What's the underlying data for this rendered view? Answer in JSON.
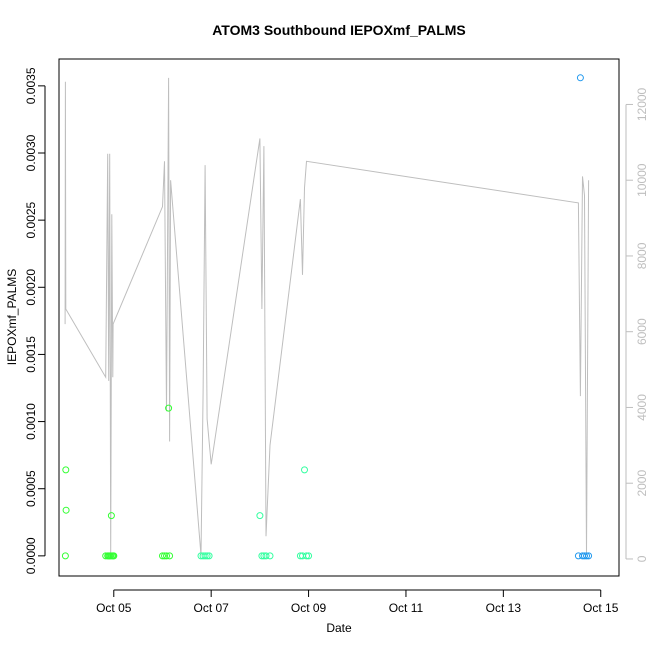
{
  "chart_data": {
    "type": "scatter",
    "title": "ATOM3 Southbound IEPOXmf_PALMS",
    "xlabel": "Date",
    "ylabel": "IEPOXmf_PALMS",
    "x_axis": {
      "kind": "date",
      "range": [
        "2017-10-03T21:00",
        "2017-10-15T09:00"
      ],
      "ticks": [
        {
          "value": "2017-10-05",
          "label": "Oct 05"
        },
        {
          "value": "2017-10-07",
          "label": "Oct 07"
        },
        {
          "value": "2017-10-09",
          "label": "Oct 09"
        },
        {
          "value": "2017-10-11",
          "label": "Oct 11"
        },
        {
          "value": "2017-10-13",
          "label": "Oct 13"
        },
        {
          "value": "2017-10-15",
          "label": "Oct 15"
        }
      ]
    },
    "y_axis": {
      "range": [
        -0.00015,
        0.0037
      ],
      "ticks": [
        {
          "value": 0.0,
          "label": "0.0000"
        },
        {
          "value": 0.0005,
          "label": "0.0005"
        },
        {
          "value": 0.001,
          "label": "0.0010"
        },
        {
          "value": 0.0015,
          "label": "0.0015"
        },
        {
          "value": 0.002,
          "label": "0.0020"
        },
        {
          "value": 0.0025,
          "label": "0.0025"
        },
        {
          "value": 0.003,
          "label": "0.0030"
        },
        {
          "value": 0.0035,
          "label": "0.0035"
        }
      ]
    },
    "y2_axis": {
      "range": [
        -450,
        13200
      ],
      "color": "#bebebe",
      "ticks": [
        {
          "value": 0,
          "label": "0"
        },
        {
          "value": 2000,
          "label": "2000"
        },
        {
          "value": 4000,
          "label": "4000"
        },
        {
          "value": 6000,
          "label": "6000"
        },
        {
          "value": 8000,
          "label": "8000"
        },
        {
          "value": 10000,
          "label": "10000"
        },
        {
          "value": 12000,
          "label": "12000"
        }
      ]
    },
    "grid": false,
    "series": [
      {
        "kind": "points",
        "marker": "open-circle",
        "color_scale": [
          "#33ff33",
          "#33ffa0",
          "#33ccee",
          "#2299ee"
        ],
        "points": [
          {
            "x": "2017-10-04T00:10",
            "y": 0.0
          },
          {
            "x": "2017-10-04T00:20",
            "y": 0.00064
          },
          {
            "x": "2017-10-04T00:30",
            "y": 0.00034
          },
          {
            "x": "2017-10-04T20:00",
            "y": 0.0
          },
          {
            "x": "2017-10-04T21:00",
            "y": 0.0
          },
          {
            "x": "2017-10-04T21:30",
            "y": 0.0
          },
          {
            "x": "2017-10-04T22:00",
            "y": 0.0
          },
          {
            "x": "2017-10-04T22:30",
            "y": 0.0
          },
          {
            "x": "2017-10-04T22:50",
            "y": 0.0003
          },
          {
            "x": "2017-10-04T23:10",
            "y": 0.0
          },
          {
            "x": "2017-10-04T23:40",
            "y": 0.0
          },
          {
            "x": "2017-10-05T00:00",
            "y": 0.0
          },
          {
            "x": "2017-10-06T00:00",
            "y": 0.0
          },
          {
            "x": "2017-10-06T01:00",
            "y": 0.0
          },
          {
            "x": "2017-10-06T02:00",
            "y": 0.0
          },
          {
            "x": "2017-10-06T03:00",
            "y": 0.0011
          },
          {
            "x": "2017-10-06T03:30",
            "y": 0.0
          },
          {
            "x": "2017-10-06T19:00",
            "y": 0.0
          },
          {
            "x": "2017-10-06T20:00",
            "y": 0.0
          },
          {
            "x": "2017-10-06T21:00",
            "y": 0.0
          },
          {
            "x": "2017-10-06T22:00",
            "y": 0.0
          },
          {
            "x": "2017-10-06T23:00",
            "y": 0.0
          },
          {
            "x": "2017-10-08T00:00",
            "y": 0.0003
          },
          {
            "x": "2017-10-08T01:00",
            "y": 0.0
          },
          {
            "x": "2017-10-08T02:00",
            "y": 0.0
          },
          {
            "x": "2017-10-08T03:00",
            "y": 0.0
          },
          {
            "x": "2017-10-08T05:00",
            "y": 0.0
          },
          {
            "x": "2017-10-08T20:00",
            "y": 0.0
          },
          {
            "x": "2017-10-08T21:00",
            "y": 0.0
          },
          {
            "x": "2017-10-08T22:00",
            "y": 0.00064
          },
          {
            "x": "2017-10-08T23:00",
            "y": 0.0
          },
          {
            "x": "2017-10-09T00:00",
            "y": 0.0
          },
          {
            "x": "2017-10-14T13:00",
            "y": 0.0
          },
          {
            "x": "2017-10-14T14:00",
            "y": 0.00356
          },
          {
            "x": "2017-10-14T15:00",
            "y": 0.0
          },
          {
            "x": "2017-10-14T16:00",
            "y": 0.0
          },
          {
            "x": "2017-10-14T17:00",
            "y": 0.0
          },
          {
            "x": "2017-10-14T18:00",
            "y": 0.0
          }
        ]
      },
      {
        "kind": "line",
        "axis": "y2",
        "color": "#bebebe",
        "points": [
          {
            "x": "2017-10-04T00:00",
            "y": 6200
          },
          {
            "x": "2017-10-04T00:10",
            "y": 12600
          },
          {
            "x": "2017-10-04T00:20",
            "y": 6600
          },
          {
            "x": "2017-10-04T20:00",
            "y": 4800
          },
          {
            "x": "2017-10-04T21:00",
            "y": 10700
          },
          {
            "x": "2017-10-04T21:30",
            "y": 4700
          },
          {
            "x": "2017-10-04T22:00",
            "y": 10700
          },
          {
            "x": "2017-10-04T22:30",
            "y": 100
          },
          {
            "x": "2017-10-04T23:00",
            "y": 9100
          },
          {
            "x": "2017-10-04T23:30",
            "y": 4800
          },
          {
            "x": "2017-10-04T23:40",
            "y": 6200
          },
          {
            "x": "2017-10-06T00:00",
            "y": 9300
          },
          {
            "x": "2017-10-06T01:00",
            "y": 10500
          },
          {
            "x": "2017-10-06T02:00",
            "y": 3900
          },
          {
            "x": "2017-10-06T03:00",
            "y": 12700
          },
          {
            "x": "2017-10-06T03:30",
            "y": 3100
          },
          {
            "x": "2017-10-06T04:00",
            "y": 10000
          },
          {
            "x": "2017-10-06T19:00",
            "y": 100
          },
          {
            "x": "2017-10-06T20:00",
            "y": 4400
          },
          {
            "x": "2017-10-06T21:00",
            "y": 10400
          },
          {
            "x": "2017-10-06T22:00",
            "y": 3700
          },
          {
            "x": "2017-10-06T23:00",
            "y": 3100
          },
          {
            "x": "2017-10-07T00:00",
            "y": 2500
          },
          {
            "x": "2017-10-08T00:00",
            "y": 11100
          },
          {
            "x": "2017-10-08T01:00",
            "y": 6600
          },
          {
            "x": "2017-10-08T02:00",
            "y": 10900
          },
          {
            "x": "2017-10-08T03:00",
            "y": 600
          },
          {
            "x": "2017-10-08T05:00",
            "y": 3000
          },
          {
            "x": "2017-10-08T20:00",
            "y": 9500
          },
          {
            "x": "2017-10-08T21:00",
            "y": 7500
          },
          {
            "x": "2017-10-08T22:00",
            "y": 9800
          },
          {
            "x": "2017-10-08T23:00",
            "y": 10500
          },
          {
            "x": "2017-10-14T13:00",
            "y": 9400
          },
          {
            "x": "2017-10-14T14:00",
            "y": 4300
          },
          {
            "x": "2017-10-14T15:00",
            "y": 10100
          },
          {
            "x": "2017-10-14T16:00",
            "y": 9600
          },
          {
            "x": "2017-10-14T17:00",
            "y": 100
          },
          {
            "x": "2017-10-14T18:00",
            "y": 10000
          }
        ]
      }
    ]
  }
}
